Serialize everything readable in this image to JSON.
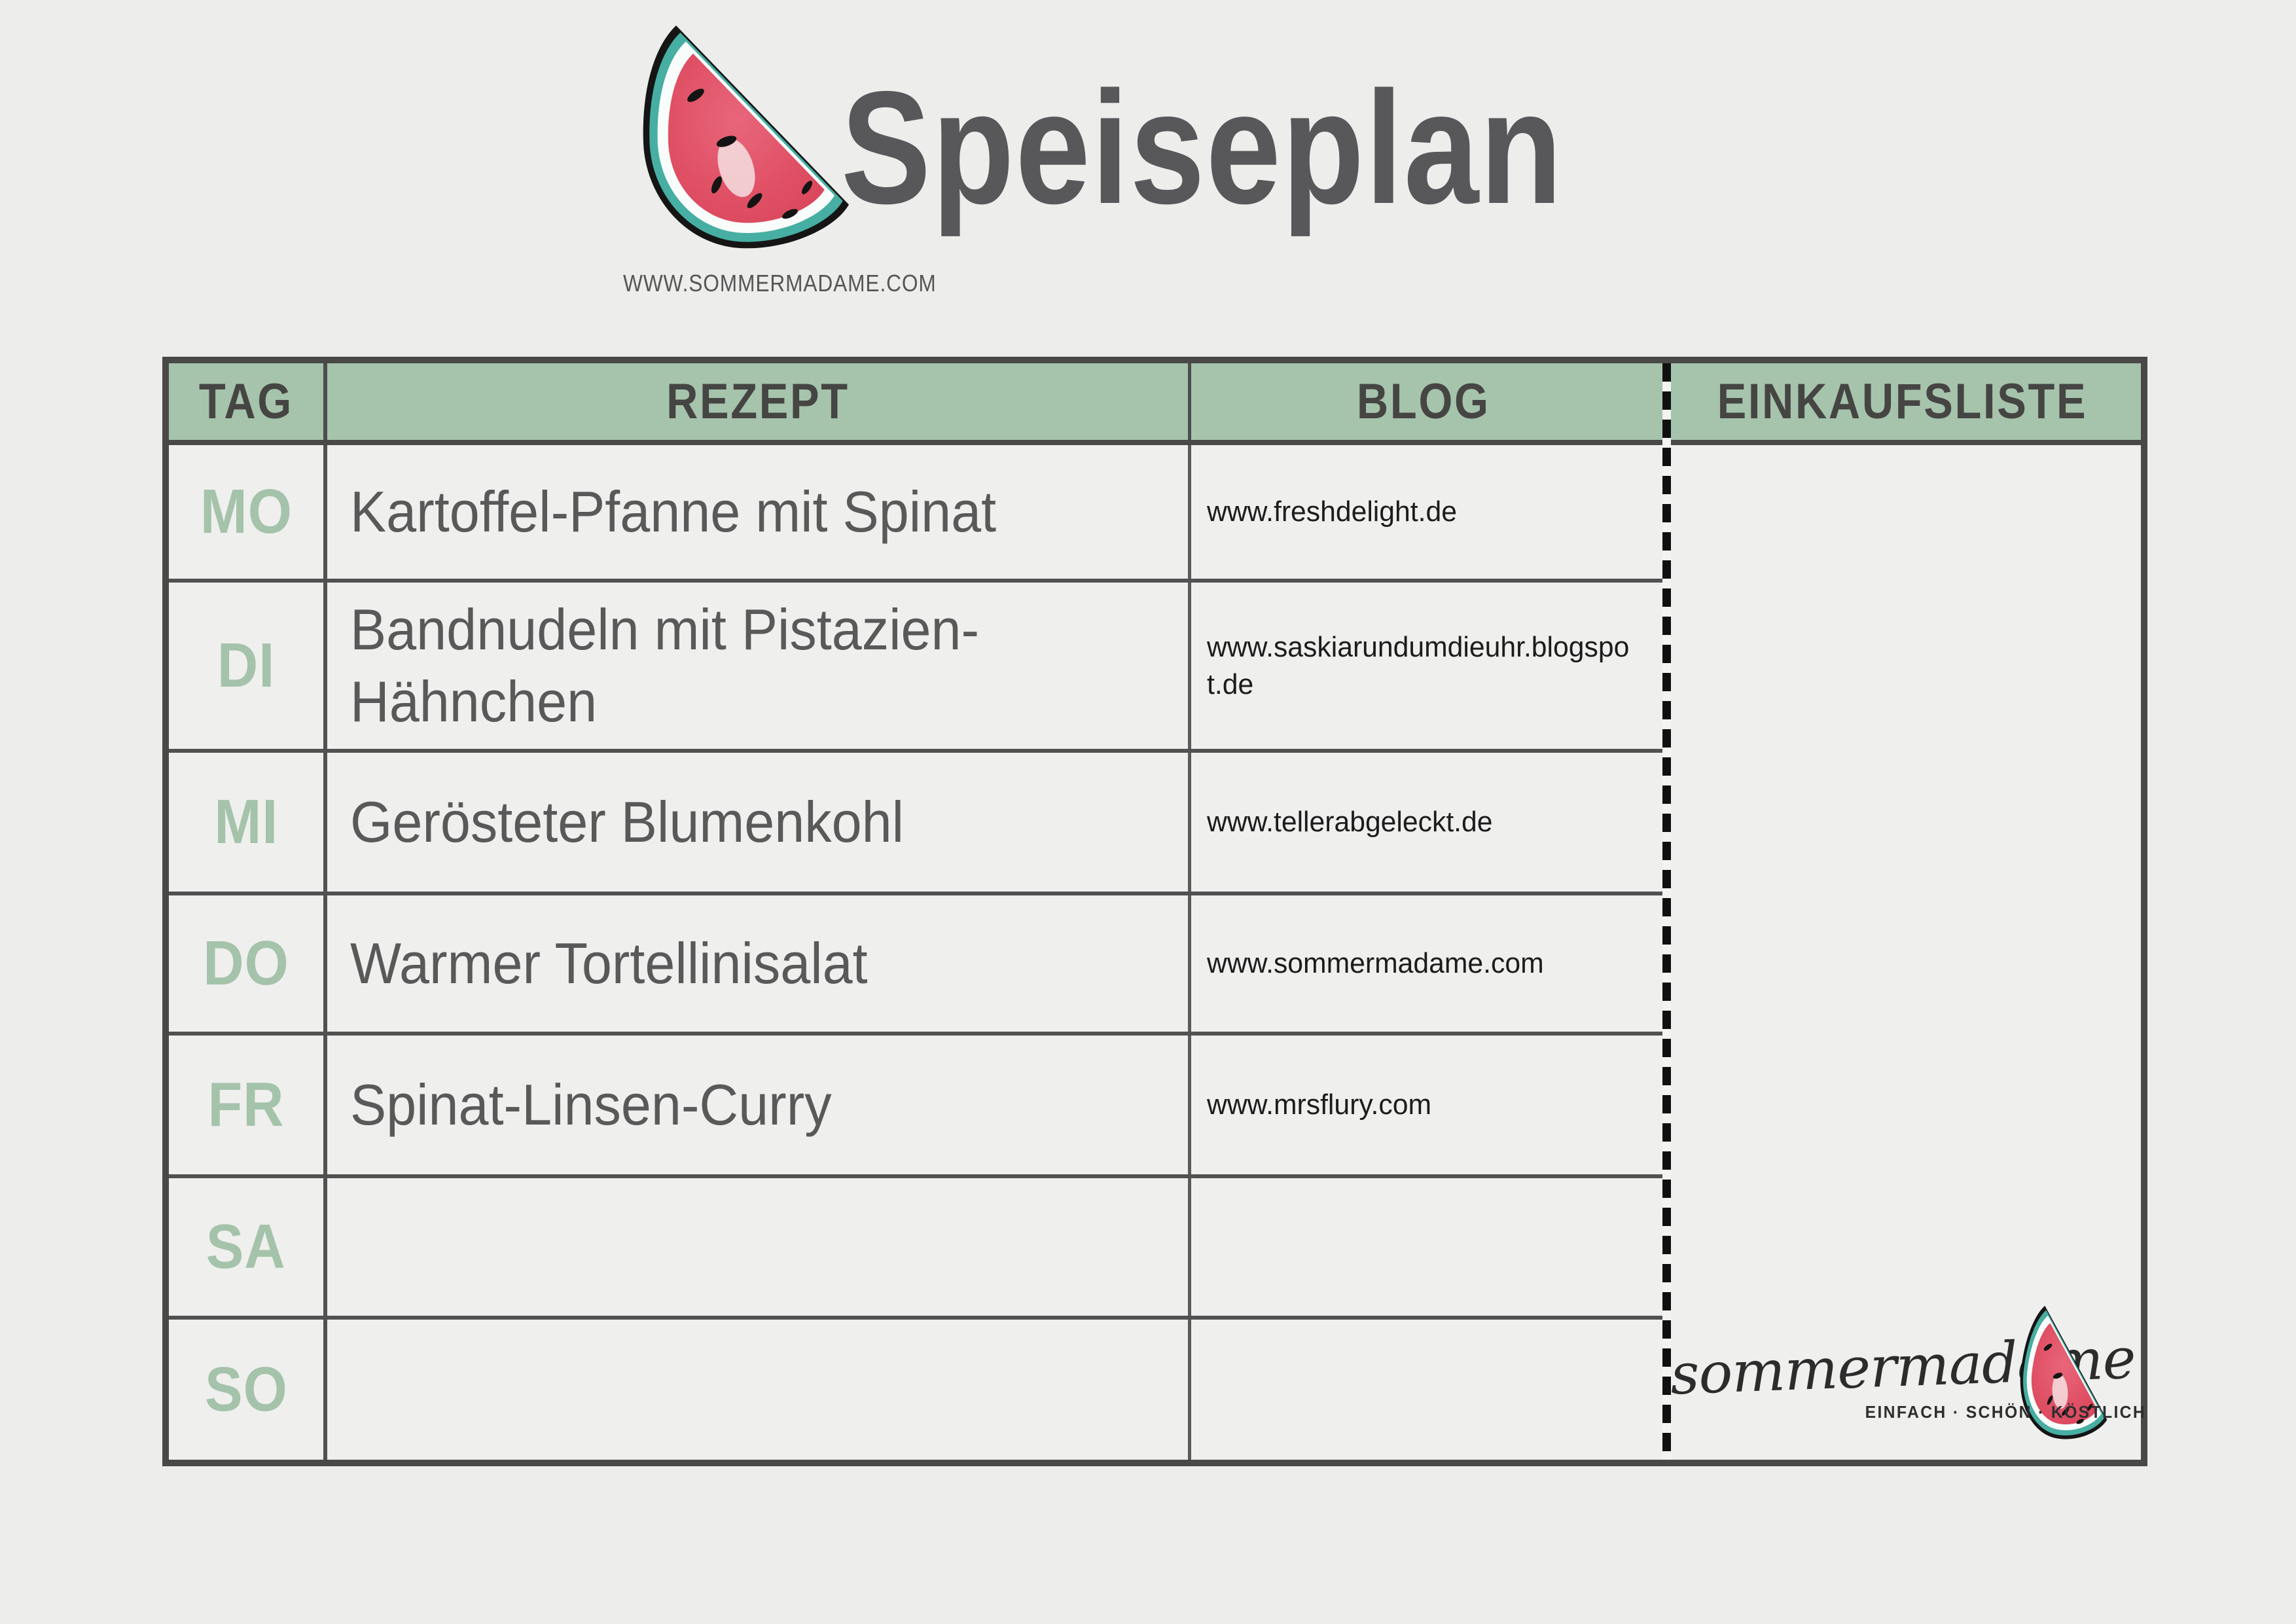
{
  "masthead": {
    "title": "Speiseplan",
    "website": "WWW.SOMMERMADAME.COM"
  },
  "table": {
    "columns": [
      "TAG",
      "REZEPT",
      "BLOG",
      "EINKAUFSLISTE"
    ],
    "rows": [
      {
        "day": "MO",
        "recipe": "Kartoffel-Pfanne mit Spinat",
        "blog": "www.freshdelight.de"
      },
      {
        "day": "DI",
        "recipe": "Bandnudeln mit Pistazien-Hähnchen",
        "blog": "www.saskiarundumdieuhr.blogspot.de"
      },
      {
        "day": "MI",
        "recipe": "Gerösteter Blumenkohl",
        "blog": "www.tellerabgeleckt.de"
      },
      {
        "day": "DO",
        "recipe": "Warmer Tortellinisalat",
        "blog": "www.sommermadame.com"
      },
      {
        "day": "FR",
        "recipe": "Spinat-Linsen-Curry",
        "blog": "www.mrsflury.com"
      },
      {
        "day": "SA",
        "recipe": "",
        "blog": ""
      },
      {
        "day": "SO",
        "recipe": "",
        "blog": ""
      }
    ]
  },
  "footer_logo": {
    "script": "sommermadame",
    "tagline": "EINFACH · SCHÖN · KÖSTLICH"
  },
  "icons": {
    "watermelon_top": "watermelon-slice-icon",
    "watermelon_logo": "watermelon-slice-icon"
  },
  "colors": {
    "background": "#ededec",
    "header_green": "#a6c3ac",
    "day_green": "#a4c3aa",
    "border_dark": "#494947",
    "divider_gray": "#515151",
    "title_gray": "#58585a",
    "recipe_gray": "#59595a",
    "blog_text": "#1c1c1c",
    "dash_black": "#101010",
    "melon_red": "#e05065",
    "melon_teal": "#46aea2"
  }
}
